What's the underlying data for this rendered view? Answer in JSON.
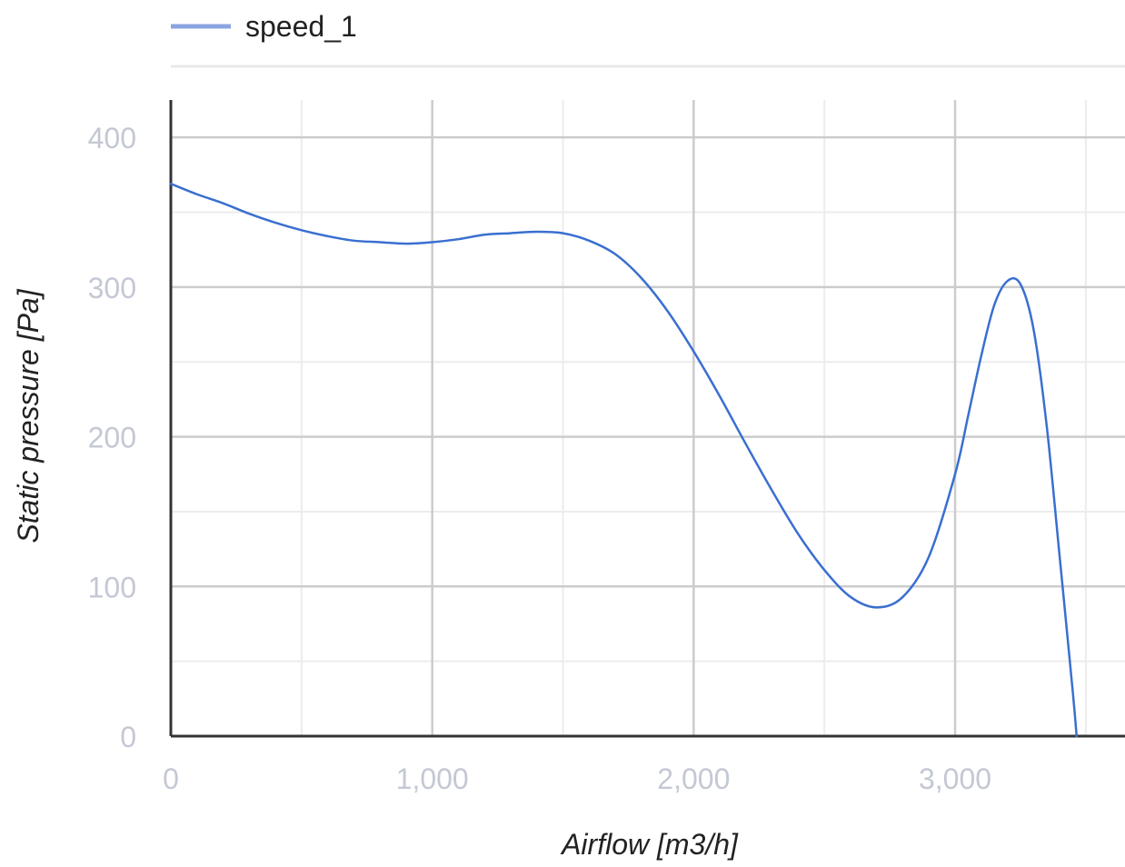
{
  "chart_data": {
    "type": "line",
    "xlabel": "Airflow [m3/h]",
    "ylabel": "Static pressure [Pa]",
    "xlim": [
      0,
      3650
    ],
    "ylim": [
      0,
      425
    ],
    "x_ticks": [
      0,
      1000,
      2000,
      3000
    ],
    "x_tick_labels": [
      "0",
      "1,000",
      "2,000",
      "3,000"
    ],
    "x_minor_ticks": [
      500,
      1500,
      2500,
      3500
    ],
    "y_ticks": [
      0,
      100,
      200,
      300,
      400
    ],
    "y_tick_labels": [
      "0",
      "100",
      "200",
      "300",
      "400"
    ],
    "y_minor_ticks": [
      50,
      150,
      250,
      350
    ],
    "grid": true,
    "legend": {
      "position": "top-left"
    },
    "series": [
      {
        "name": "speed_1",
        "color": "#3a6fd0",
        "legend_color": "#8ba4e0",
        "x": [
          0,
          100,
          200,
          300,
          400,
          500,
          600,
          700,
          800,
          900,
          1000,
          1100,
          1200,
          1300,
          1400,
          1500,
          1600,
          1700,
          1800,
          1900,
          2000,
          2100,
          2200,
          2300,
          2400,
          2500,
          2600,
          2700,
          2800,
          2900,
          3000,
          3050,
          3100,
          3150,
          3200,
          3250,
          3300,
          3350,
          3400,
          3450,
          3465
        ],
        "y": [
          369,
          362,
          356,
          349,
          343,
          338,
          334,
          331,
          330,
          329,
          330,
          332,
          335,
          336,
          337,
          336,
          331,
          322,
          306,
          284,
          257,
          227,
          195,
          164,
          135,
          111,
          93,
          86,
          93,
          120,
          175,
          214,
          254,
          288,
          304,
          302,
          272,
          208,
          120,
          30,
          0
        ]
      }
    ]
  }
}
